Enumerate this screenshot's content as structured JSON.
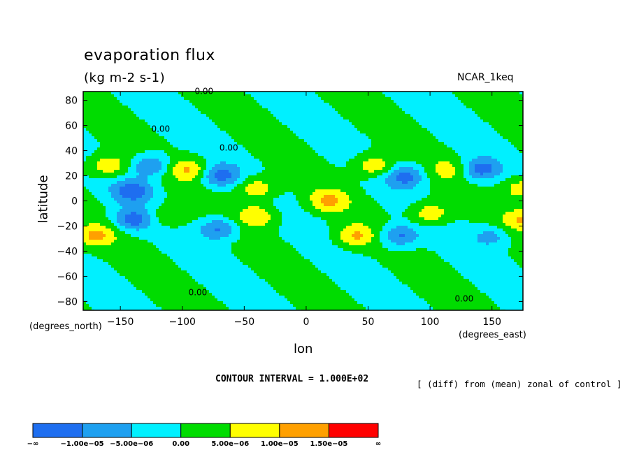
{
  "chart_data": {
    "type": "heatmap",
    "title": "evaporation flux",
    "subtitle": "(kg m-2 s-1)",
    "dataset_tag": "NCAR_1keq",
    "xlabel": "lon",
    "ylabel": "latitude",
    "x_units_note": "(degrees_east)",
    "y_units_note": "(degrees_north)",
    "xlim": [
      -180,
      175
    ],
    "ylim": [
      -87,
      87
    ],
    "x_ticks": [
      -150,
      -100,
      -50,
      0,
      50,
      100,
      150
    ],
    "y_ticks": [
      80,
      60,
      40,
      20,
      0,
      -20,
      -40,
      -60,
      -80
    ],
    "x_tick_labels": [
      "−150",
      "−100",
      "−50",
      "0",
      "50",
      "100",
      "150"
    ],
    "y_tick_labels": [
      "80",
      "60",
      "40",
      "20",
      "0",
      "−20",
      "−40",
      "−60",
      "−80"
    ],
    "contour_interval_text": "CONTOUR INTERVAL = 1.000E+02",
    "note": "[ (diff) from (mean) zonal of control ]",
    "contour_labels": [
      "0.00",
      "0.00",
      "0.00",
      "0.00",
      "0.00"
    ],
    "colorbar": {
      "colors": [
        "#1e6ef0",
        "#1ea0f0",
        "#00f0ff",
        "#00dc00",
        "#ffff00",
        "#ffa000",
        "#ff0000"
      ],
      "labels": [
        "−∞",
        "−1.00e−05",
        "−5.00e−06",
        "0.00",
        "5.00e−06",
        "1.00e−05",
        "1.50e−05",
        "∞"
      ]
    },
    "waves": [
      {
        "lon": -160,
        "lat": 28,
        "sign": 1,
        "level": 2
      },
      {
        "lon": -140,
        "lat": 8,
        "sign": -1,
        "level": 2
      },
      {
        "lon": -170,
        "lat": -28,
        "sign": 1,
        "level": 2
      },
      {
        "lon": -140,
        "lat": -15,
        "sign": -1,
        "level": 2
      },
      {
        "lon": -125,
        "lat": 28,
        "sign": -1,
        "level": 2
      },
      {
        "lon": -110,
        "lat": -12,
        "sign": 1,
        "level": 1
      },
      {
        "lon": -95,
        "lat": 25,
        "sign": 1,
        "level": 2
      },
      {
        "lon": -70,
        "lat": 20,
        "sign": -1,
        "level": 2
      },
      {
        "lon": -70,
        "lat": -22,
        "sign": -1,
        "level": 2
      },
      {
        "lon": -40,
        "lat": 10,
        "sign": 1,
        "level": 2
      },
      {
        "lon": -40,
        "lat": -12,
        "sign": 1,
        "level": 2
      },
      {
        "lon": 18,
        "lat": 0,
        "sign": 1,
        "level": 2
      },
      {
        "lon": 55,
        "lat": 28,
        "sign": 1,
        "level": 2
      },
      {
        "lon": 40,
        "lat": -28,
        "sign": 1,
        "level": 2
      },
      {
        "lon": 80,
        "lat": 20,
        "sign": -1,
        "level": 2
      },
      {
        "lon": 75,
        "lat": -28,
        "sign": -1,
        "level": 2
      },
      {
        "lon": 115,
        "lat": 25,
        "sign": 1,
        "level": 1
      },
      {
        "lon": 100,
        "lat": -10,
        "sign": 1,
        "level": 2
      },
      {
        "lon": 140,
        "lat": 25,
        "sign": -1,
        "level": 2
      },
      {
        "lon": 150,
        "lat": -28,
        "sign": -1,
        "level": 1
      },
      {
        "lon": 175,
        "lat": 10,
        "sign": 1,
        "level": 2
      },
      {
        "lon": 175,
        "lat": -15,
        "sign": 1,
        "level": 2
      }
    ]
  }
}
